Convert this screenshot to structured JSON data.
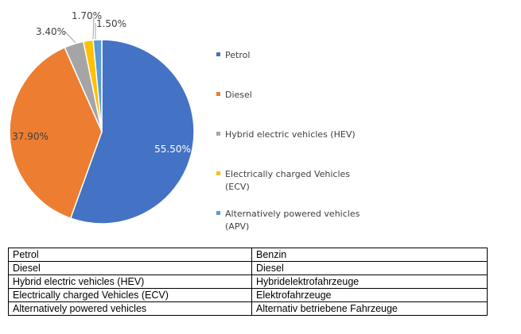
{
  "chart_data": {
    "type": "pie",
    "slices": [
      {
        "name": "Petrol",
        "value": 55.5,
        "label": "55.50%",
        "color": "#4472C4"
      },
      {
        "name": "Diesel",
        "value": 37.9,
        "label": "37.90%",
        "color": "#ED7D31"
      },
      {
        "name": "Hybrid electric vehicles (HEV)",
        "value": 3.4,
        "label": "3.40%",
        "color": "#A5A5A5"
      },
      {
        "name": "Electrically charged Vehicles (ECV)",
        "value": 1.7,
        "label": "1.70%",
        "color": "#FFC000"
      },
      {
        "name": "Alternatively powered vehicles (APV)",
        "value": 1.5,
        "label": "1.50%",
        "color": "#5B9BD5"
      }
    ],
    "legend": {
      "position": "right",
      "items": [
        [
          "Petrol"
        ],
        [
          "Diesel"
        ],
        [
          "Hybrid electric vehicles (HEV)"
        ],
        [
          "Electrically charged Vehicles",
          "(ECV)"
        ],
        [
          "Alternatively powered vehicles",
          "(APV)"
        ]
      ]
    }
  },
  "table": {
    "rows": [
      [
        "Petrol",
        "Benzin"
      ],
      [
        "Diesel",
        "Diesel"
      ],
      [
        "Hybrid electric vehicles (HEV)",
        "Hybridelektrofahrzeuge"
      ],
      [
        "Electrically charged Vehicles (ECV)",
        "Elektrofahrzeuge"
      ],
      [
        "Alternatively powered vehicles",
        "Alternativ betriebene Fahrzeuge"
      ]
    ]
  }
}
